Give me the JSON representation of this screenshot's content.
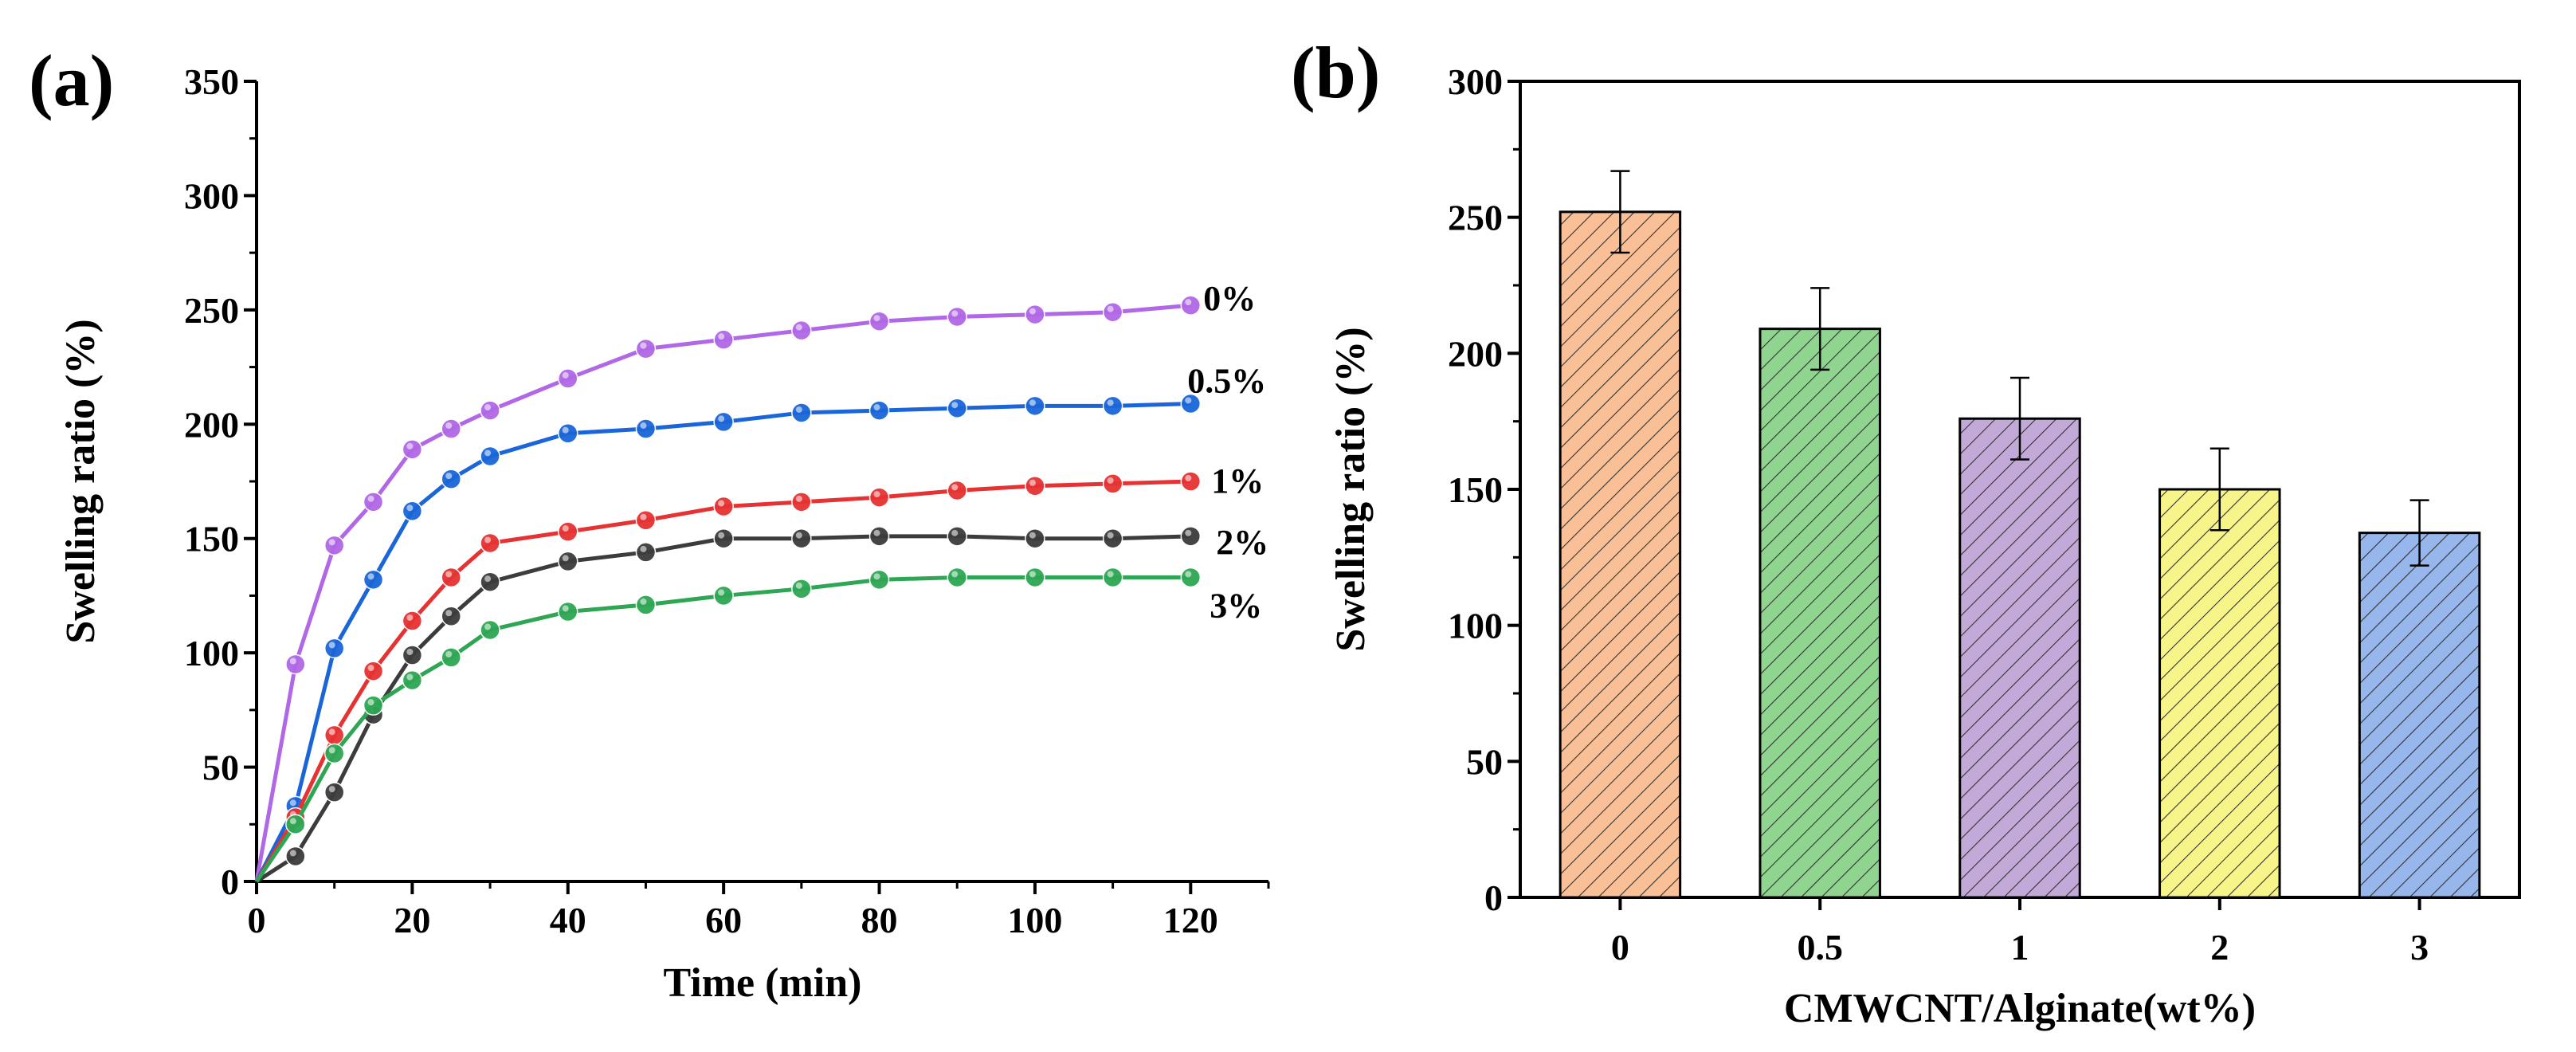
{
  "chart_data": [
    {
      "panel_label": "(a)",
      "type": "line",
      "xlabel": "Time (min)",
      "ylabel": "Swelling ratio (%)",
      "xlim": [
        0,
        130
      ],
      "ylim": [
        0,
        350
      ],
      "xticks": [
        0,
        20,
        40,
        60,
        80,
        100,
        120
      ],
      "yticks": [
        0,
        50,
        100,
        150,
        200,
        250,
        300,
        350
      ],
      "x": [
        0,
        5,
        10,
        15,
        20,
        25,
        30,
        40,
        50,
        60,
        70,
        80,
        90,
        100,
        110,
        120
      ],
      "series": [
        {
          "name": "0%",
          "color": "#b168e6",
          "values": [
            0,
            95,
            147,
            166,
            189,
            198,
            206,
            220,
            233,
            237,
            241,
            245,
            247,
            248,
            249,
            252
          ]
        },
        {
          "name": "0.5%",
          "color": "#1a66d9",
          "values": [
            0,
            33,
            102,
            132,
            162,
            176,
            186,
            196,
            198,
            201,
            205,
            206,
            207,
            208,
            208,
            209
          ]
        },
        {
          "name": "1%",
          "color": "#e63232",
          "values": [
            0,
            28,
            64,
            92,
            114,
            133,
            148,
            153,
            158,
            164,
            166,
            168,
            171,
            173,
            174,
            175
          ]
        },
        {
          "name": "2%",
          "color": "#3c3c3c",
          "values": [
            0,
            11,
            39,
            73,
            99,
            116,
            131,
            140,
            144,
            150,
            150,
            151,
            151,
            150,
            150,
            151
          ]
        },
        {
          "name": "3%",
          "color": "#2ea653",
          "values": [
            0,
            25,
            56,
            77,
            88,
            98,
            110,
            118,
            121,
            125,
            128,
            132,
            133,
            133,
            133,
            133
          ]
        }
      ],
      "grid": false,
      "legend": "inline labels at line ends"
    },
    {
      "panel_label": "(b)",
      "type": "bar",
      "xlabel": "CMWCNT/Alginate(wt%)",
      "ylabel": "Swelling ratio (%)",
      "ylim": [
        0,
        300
      ],
      "yticks": [
        0,
        50,
        100,
        150,
        200,
        250,
        300
      ],
      "categories": [
        "0",
        "0.5",
        "1",
        "2",
        "3"
      ],
      "values": [
        252,
        209,
        176,
        150,
        134
      ],
      "errors": [
        15,
        15,
        15,
        15,
        12
      ],
      "colors": [
        "#f9c097",
        "#8fd48f",
        "#c3a9d8",
        "#f7f58a",
        "#96b6ec"
      ],
      "pattern": "diagonal hatch",
      "grid": false
    }
  ]
}
